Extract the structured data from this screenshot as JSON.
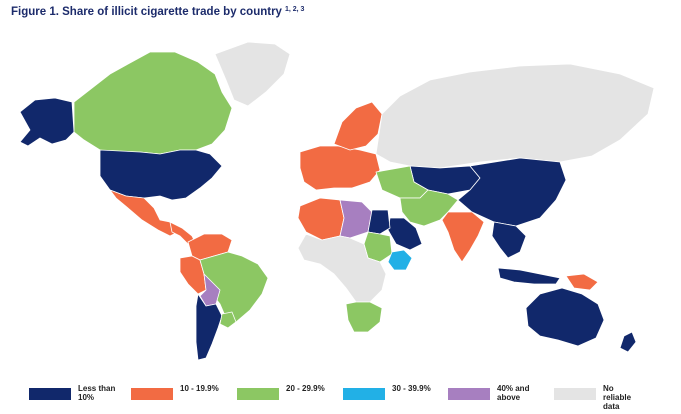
{
  "figure": {
    "title": "Figure 1. Share of illicit cigarette trade by country",
    "title_superscript": "1, 2, 3"
  },
  "colors": {
    "less_than_10": "#11286b",
    "10_19": "#f26b43",
    "20_29": "#8cc763",
    "30_39": "#22b0e6",
    "40_above": "#a77fc0",
    "no_data": "#e4e4e4",
    "background": "#ffffff"
  },
  "legend": [
    {
      "label_line1": "Less than",
      "label_line2": "10%",
      "color": "#11286b"
    },
    {
      "label_line1": "10 - 19.9%",
      "label_line2": "",
      "color": "#f26b43"
    },
    {
      "label_line1": "20 - 29.9%",
      "label_line2": "",
      "color": "#8cc763"
    },
    {
      "label_line1": "30 - 39.9%",
      "label_line2": "",
      "color": "#22b0e6"
    },
    {
      "label_line1": "40% and",
      "label_line2": "above",
      "color": "#a77fc0"
    },
    {
      "label_line1": "No reliable",
      "label_line2": "data",
      "color": "#e4e4e4"
    }
  ],
  "regions": [
    {
      "name": "Alaska",
      "category": "less_than_10"
    },
    {
      "name": "Canada",
      "category": "20_29"
    },
    {
      "name": "Greenland",
      "category": "no_data"
    },
    {
      "name": "United States",
      "category": "less_than_10"
    },
    {
      "name": "Mexico",
      "category": "10_19"
    },
    {
      "name": "Central America",
      "category": "10_19"
    },
    {
      "name": "Colombia / Venezuela",
      "category": "10_19"
    },
    {
      "name": "Peru",
      "category": "10_19"
    },
    {
      "name": "Brazil",
      "category": "20_29"
    },
    {
      "name": "Bolivia",
      "category": "40_above"
    },
    {
      "name": "Chile / Argentina",
      "category": "less_than_10"
    },
    {
      "name": "Uruguay",
      "category": "20_29"
    },
    {
      "name": "Western Europe",
      "category": "10_19"
    },
    {
      "name": "Nordics",
      "category": "10_19"
    },
    {
      "name": "Russia",
      "category": "no_data"
    },
    {
      "name": "Kazakhstan",
      "category": "less_than_10"
    },
    {
      "name": "Central Asia",
      "category": "20_29"
    },
    {
      "name": "China / Mongolia",
      "category": "less_than_10"
    },
    {
      "name": "India",
      "category": "10_19"
    },
    {
      "name": "Pakistan / Iran",
      "category": "20_29"
    },
    {
      "name": "Saudi Arabia",
      "category": "less_than_10"
    },
    {
      "name": "Algeria",
      "category": "10_19"
    },
    {
      "name": "Libya",
      "category": "40_above"
    },
    {
      "name": "Egypt",
      "category": "less_than_10"
    },
    {
      "name": "Sudan",
      "category": "20_29"
    },
    {
      "name": "Ethiopia",
      "category": "30_39"
    },
    {
      "name": "Central Africa",
      "category": "no_data"
    },
    {
      "name": "South Africa",
      "category": "20_29"
    },
    {
      "name": "Southeast Asia",
      "category": "less_than_10"
    },
    {
      "name": "Indonesia",
      "category": "less_than_10"
    },
    {
      "name": "Papua New Guinea",
      "category": "10_19"
    },
    {
      "name": "Australia",
      "category": "less_than_10"
    },
    {
      "name": "New Zealand",
      "category": "less_than_10"
    }
  ]
}
